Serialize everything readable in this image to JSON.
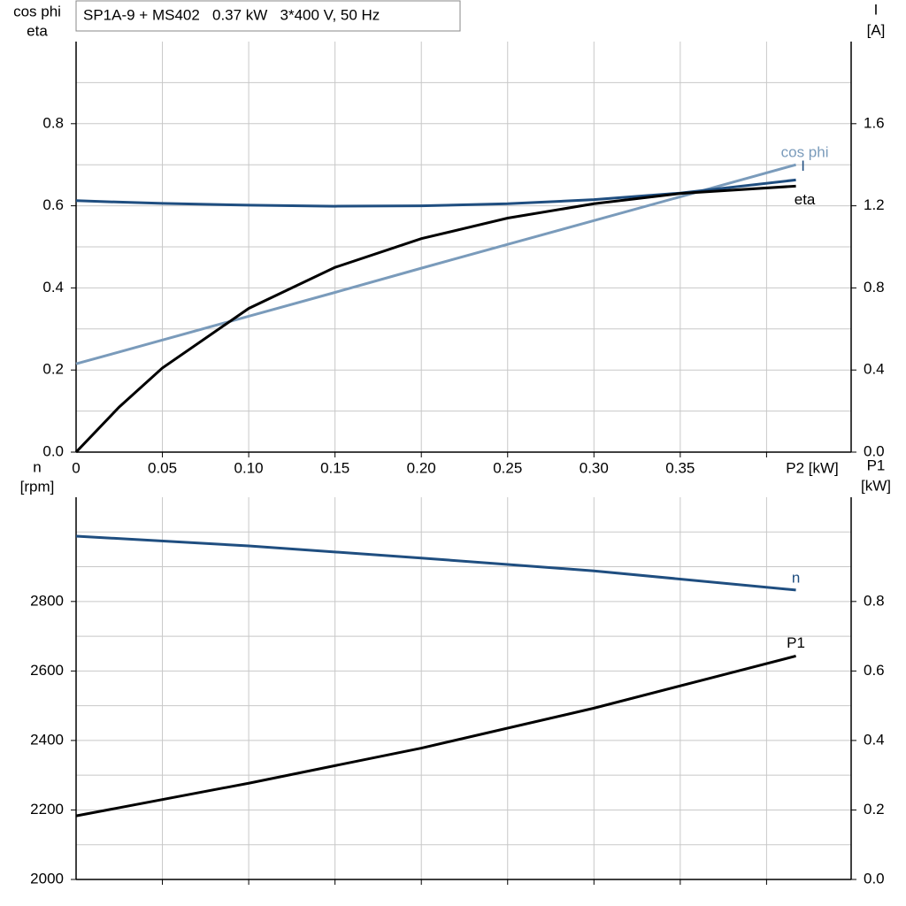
{
  "title": "SP1A-9 + MS402   0.37 kW   3*400 V, 50 Hz",
  "chart_data": [
    {
      "type": "line",
      "xlabel": "P2 [kW]",
      "ylabel": [
        "cos phi",
        "eta"
      ],
      "y2label": [
        "I",
        "[A]"
      ],
      "x": [
        0,
        0.025,
        0.05,
        0.1,
        0.15,
        0.2,
        0.25,
        0.3,
        0.35,
        0.417
      ],
      "xlim": [
        0,
        0.449
      ],
      "xticks": [
        0,
        0.05,
        {
          "value": 0.1,
          "label": "0.10"
        },
        0.15,
        {
          "value": 0.2,
          "label": "0.20"
        },
        0.25,
        {
          "value": 0.3,
          "label": "0.30"
        },
        0.35
      ],
      "xgrid": [
        0.05,
        0.1,
        0.15,
        0.2,
        0.25,
        0.3,
        0.35,
        0.4
      ],
      "ylim": [
        0,
        1.0
      ],
      "yticks": [
        {
          "value": 0,
          "label": "0.0"
        },
        0.2,
        0.4,
        0.6,
        0.8
      ],
      "ygrid": [
        0.1,
        0.2,
        0.3,
        0.4,
        0.5,
        0.6,
        0.7,
        0.8,
        0.9
      ],
      "y2lim": [
        0,
        2.0
      ],
      "y2ticks": [
        {
          "value": 0,
          "label": "0.0"
        },
        0.4,
        0.8,
        1.2,
        1.6
      ],
      "grid": true,
      "series": [
        {
          "name": "cos phi",
          "color": "#7a9bbb",
          "values": [
            0.215,
            0.244,
            0.273,
            0.331,
            0.389,
            0.448,
            0.506,
            0.564,
            0.622,
            0.7
          ]
        },
        {
          "name": "I",
          "color": "#1f4e80",
          "axis": "y2",
          "values": [
            1.225,
            1.218,
            1.212,
            1.203,
            1.198,
            1.2,
            1.21,
            1.23,
            1.262,
            1.326
          ]
        },
        {
          "name": "eta",
          "color": "#000000",
          "values": [
            0,
            0.11,
            0.205,
            0.35,
            0.45,
            0.52,
            0.57,
            0.605,
            0.63,
            0.648
          ]
        }
      ]
    },
    {
      "type": "line",
      "ylabel": [
        "n",
        "[rpm]"
      ],
      "y2label": [
        "P1",
        "[kW]"
      ],
      "x": [
        0,
        0.1,
        0.2,
        0.3,
        0.417
      ],
      "xlim": [
        0,
        0.449
      ],
      "xgrid": [
        0.05,
        0.1,
        0.15,
        0.2,
        0.25,
        0.3,
        0.35,
        0.4
      ],
      "ylim": [
        2000,
        3100
      ],
      "yticks": [
        2000,
        2200,
        2400,
        2600,
        2800
      ],
      "ygrid": [
        2100,
        2200,
        2300,
        2400,
        2500,
        2600,
        2700,
        2800,
        2900,
        3000
      ],
      "y2lim": [
        0,
        1.1
      ],
      "y2ticks": [
        {
          "value": 0,
          "label": "0.0"
        },
        0.2,
        0.4,
        0.6,
        0.8
      ],
      "grid": true,
      "series": [
        {
          "name": "n",
          "color": "#1f4e80",
          "values": [
            2988,
            2960,
            2925,
            2888,
            2833
          ]
        },
        {
          "name": "P1",
          "color": "#000000",
          "axis": "y2",
          "values": [
            0.183,
            0.277,
            0.378,
            0.493,
            0.643
          ]
        }
      ]
    }
  ]
}
